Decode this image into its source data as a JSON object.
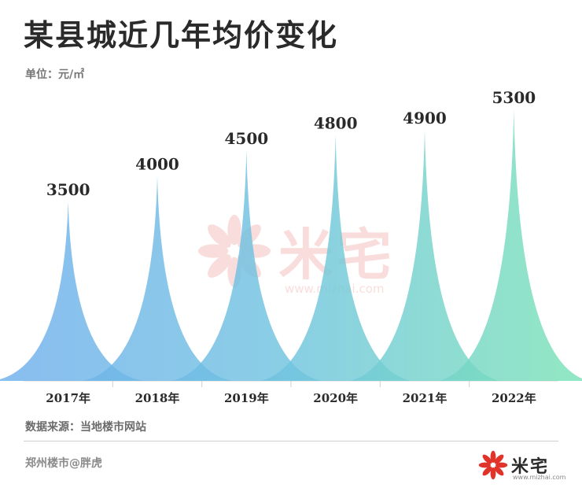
{
  "header": {
    "title": "某县城近几年均价变化",
    "unit": "单位：元/㎡"
  },
  "footer": {
    "source": "数据来源：当地楼市网站",
    "author": "郑州楼市@胖虎"
  },
  "watermark": {
    "brand": "米宅",
    "url": "www.mizhai.com"
  },
  "logo": {
    "brand": "米宅",
    "url": "www.mizhai.com"
  },
  "colors": {
    "brand_red": "#e0342b",
    "series_gradient": [
      "#6fb0ec",
      "#70c4df",
      "#79e0b8"
    ]
  },
  "chart_data": {
    "type": "area",
    "subtype": "spike",
    "categories": [
      "2017年",
      "2018年",
      "2019年",
      "2020年",
      "2021年",
      "2022年"
    ],
    "values": [
      3500,
      4000,
      4500,
      4800,
      4900,
      5300
    ],
    "value_labels": [
      "3500",
      "4000",
      "4500",
      "4800",
      "4900",
      "5300"
    ],
    "ylim": [
      0,
      5500
    ],
    "grid": false,
    "legend": "none"
  }
}
